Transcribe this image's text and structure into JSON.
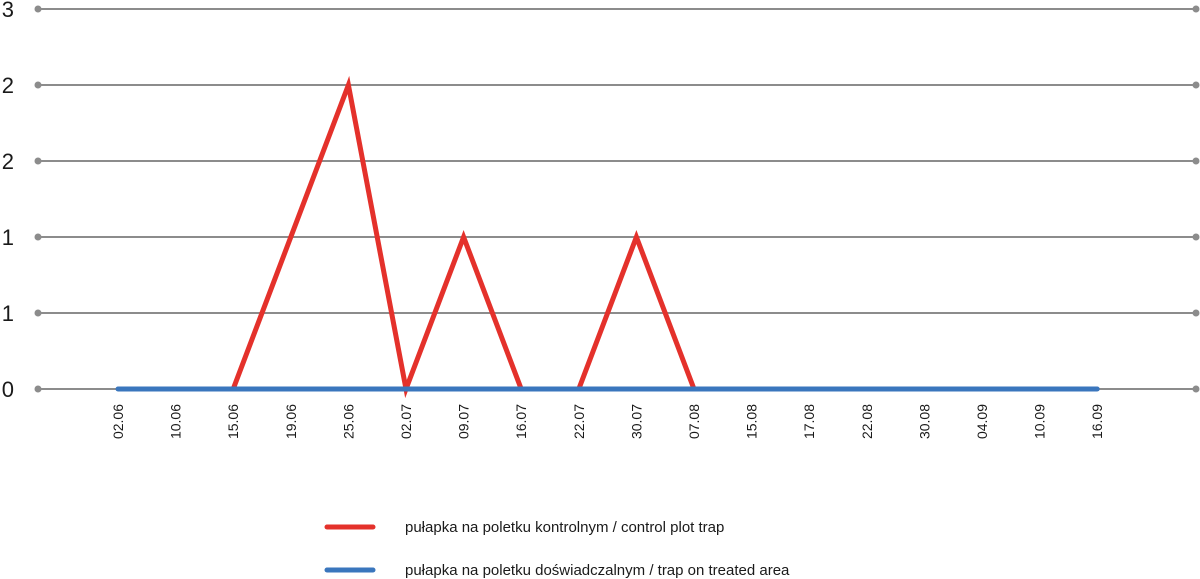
{
  "chart_data": {
    "type": "line",
    "title": "",
    "xlabel": "",
    "ylabel": "",
    "x": [
      "02.06",
      "10.06",
      "15.06",
      "19.06",
      "25.06",
      "02.07",
      "09.07",
      "16.07",
      "22.07",
      "30.07",
      "07.08",
      "15.08",
      "17.08",
      "22.08",
      "30.08",
      "04.09",
      "10.09",
      "16.09"
    ],
    "y_tick_labels": [
      "0",
      "1",
      "1",
      "2",
      "2",
      "3"
    ],
    "ylim": [
      0,
      2.5
    ],
    "grid": true,
    "legend_position": "bottom-center",
    "series": [
      {
        "name": "pułapka na poletku kontrolnym / control plot trap",
        "color": "#e4312b",
        "values": [
          null,
          null,
          0,
          1,
          2,
          0,
          1,
          0,
          0,
          1,
          0,
          null,
          null,
          null,
          null,
          null,
          null,
          null
        ]
      },
      {
        "name": "pułapka na poletku doświadczalnym / trap on treated area",
        "color": "#3a76bd",
        "values": [
          0,
          0,
          0,
          0,
          0,
          0,
          0,
          0,
          0,
          0,
          0,
          0,
          0,
          0,
          0,
          0,
          0,
          0
        ]
      }
    ]
  }
}
